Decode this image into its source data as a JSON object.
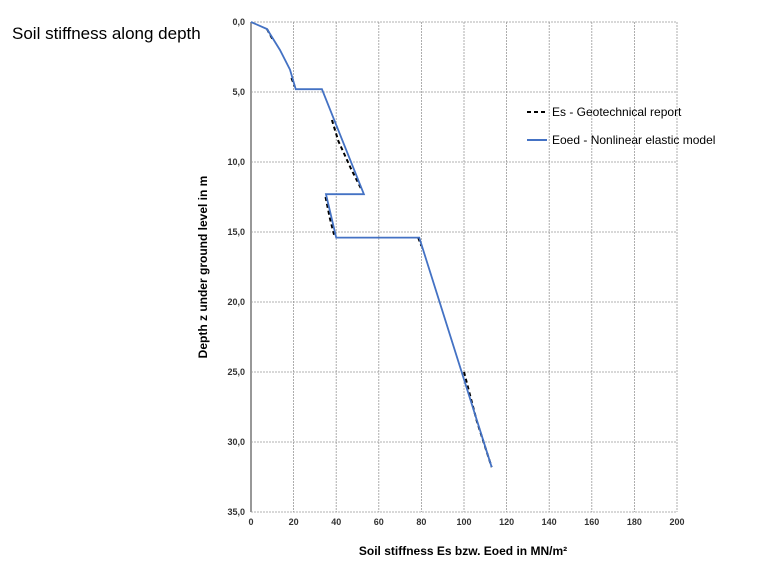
{
  "page_title": "Soil stiffness along depth",
  "chart_data": {
    "type": "line",
    "title": "",
    "xlabel": "Soil stiffness Es bzw. Eoed in MN/m²",
    "ylabel": "Depth z under ground level in m",
    "xlim": [
      0,
      200
    ],
    "ylim": [
      0,
      35
    ],
    "y_inverted": true,
    "grid": true,
    "legend_position": "top-right",
    "x_ticks": [
      "0",
      "20",
      "40",
      "60",
      "80",
      "100",
      "120",
      "140",
      "160",
      "180",
      "200"
    ],
    "y_ticks": [
      "0,0",
      "5,0",
      "10,0",
      "15,0",
      "20,0",
      "25,0",
      "30,0",
      "35,0"
    ],
    "series": [
      {
        "name": "Es - Geotechnical report",
        "color": "#000000",
        "style": "dashed",
        "segments": [
          [
            [
              7.5,
              0.5
            ],
            [
              10,
              1.2
            ]
          ],
          [
            [
              19,
              4.0
            ],
            [
              20.5,
              4.6
            ]
          ],
          [
            [
              38,
              7.0
            ],
            [
              41,
              8.5
            ],
            [
              47,
              10.5
            ],
            [
              52,
              12.0
            ]
          ],
          [
            [
              35,
              12.5
            ],
            [
              37,
              14
            ],
            [
              39,
              15.2
            ]
          ],
          [
            [
              78.5,
              15.4
            ],
            [
              80,
              16
            ]
          ],
          [
            [
              100,
              25
            ],
            [
              106,
              28.5
            ],
            [
              113,
              31.8
            ]
          ]
        ]
      },
      {
        "name": "Eoed - Nonlinear elastic model",
        "color": "#4472C4",
        "style": "solid",
        "points": [
          [
            0,
            0
          ],
          [
            7.5,
            0.5
          ],
          [
            13.6,
            2.0
          ],
          [
            18.3,
            3.4
          ],
          [
            21,
            4.8
          ],
          [
            33.3,
            4.8
          ],
          [
            53,
            12.3
          ],
          [
            35.2,
            12.3
          ],
          [
            40,
            15.4
          ],
          [
            79,
            15.4
          ],
          [
            113,
            31.8
          ]
        ]
      }
    ]
  }
}
